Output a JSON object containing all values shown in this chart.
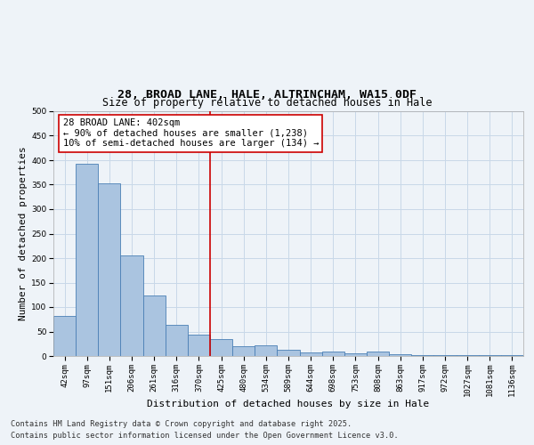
{
  "title_line1": "28, BROAD LANE, HALE, ALTRINCHAM, WA15 0DF",
  "title_line2": "Size of property relative to detached houses in Hale",
  "xlabel": "Distribution of detached houses by size in Hale",
  "ylabel": "Number of detached properties",
  "categories": [
    "42sqm",
    "97sqm",
    "151sqm",
    "206sqm",
    "261sqm",
    "316sqm",
    "370sqm",
    "425sqm",
    "480sqm",
    "534sqm",
    "589sqm",
    "644sqm",
    "698sqm",
    "753sqm",
    "808sqm",
    "863sqm",
    "917sqm",
    "972sqm",
    "1027sqm",
    "1081sqm",
    "1136sqm"
  ],
  "values": [
    82,
    393,
    352,
    205,
    124,
    64,
    44,
    34,
    20,
    22,
    13,
    8,
    9,
    5,
    9,
    3,
    2,
    2,
    2,
    1,
    2
  ],
  "bar_color": "#aac4e0",
  "bar_edge_color": "#4a7fb5",
  "grid_color": "#c8d8e8",
  "background_color": "#eef3f8",
  "vline_x_index": 6.5,
  "vline_color": "#cc0000",
  "annotation_text": "28 BROAD LANE: 402sqm\n← 90% of detached houses are smaller (1,238)\n10% of semi-detached houses are larger (134) →",
  "annotation_box_color": "#ffffff",
  "annotation_box_edge": "#cc0000",
  "ylim": [
    0,
    500
  ],
  "yticks": [
    0,
    50,
    100,
    150,
    200,
    250,
    300,
    350,
    400,
    450,
    500
  ],
  "footer_line1": "Contains HM Land Registry data © Crown copyright and database right 2025.",
  "footer_line2": "Contains public sector information licensed under the Open Government Licence v3.0.",
  "title_fontsize": 9.5,
  "subtitle_fontsize": 8.5,
  "axis_label_fontsize": 8,
  "tick_fontsize": 6.5,
  "annotation_fontsize": 7.5,
  "footer_fontsize": 6.2
}
